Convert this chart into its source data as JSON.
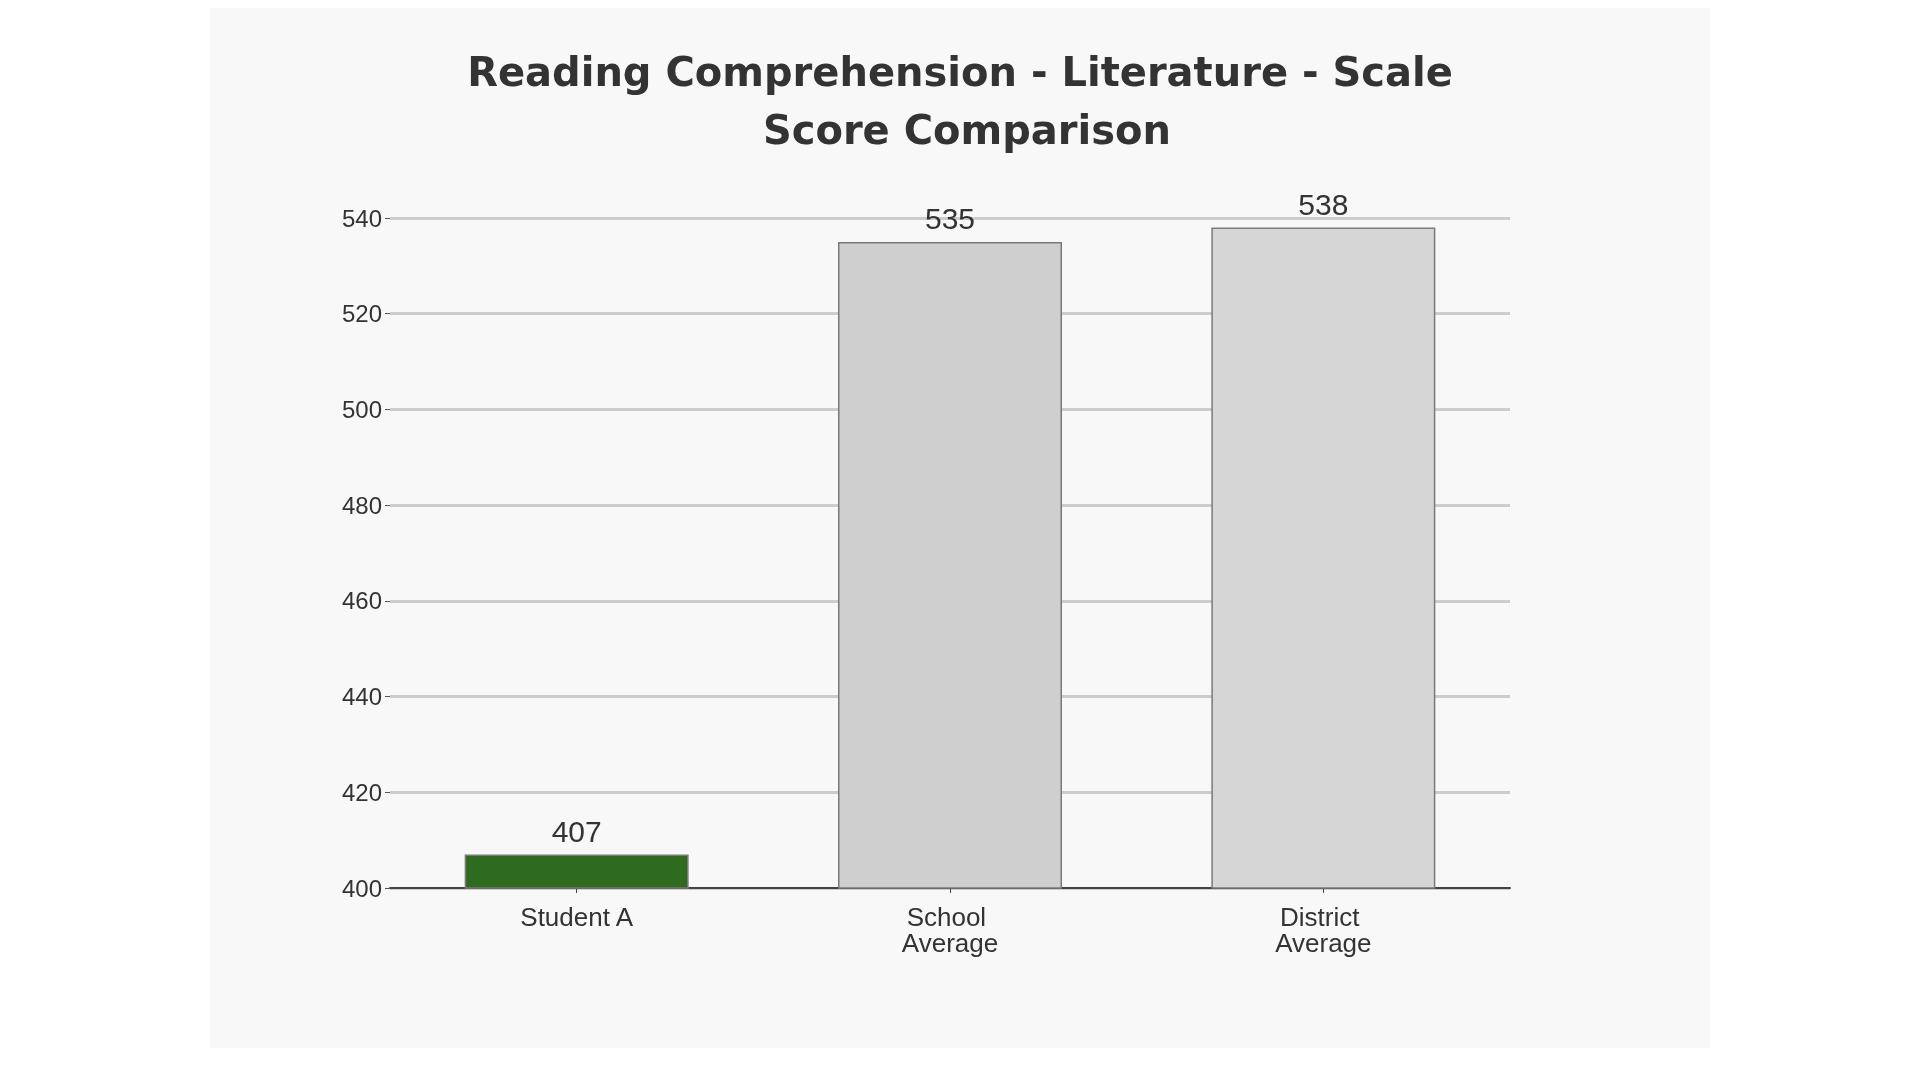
{
  "chart_data": {
    "type": "bar",
    "title": "Reading Comprehension - Literature - Scale Score Comparison",
    "categories": [
      "Student A",
      "School Average",
      "District Average"
    ],
    "values": [
      407,
      535,
      538
    ],
    "colors": [
      "#2e6b1f",
      "#cfcfcf",
      "#d6d6d6"
    ],
    "ylim": [
      400,
      540
    ],
    "yticks": [
      400,
      420,
      440,
      460,
      480,
      500,
      520,
      540
    ],
    "grid": "y",
    "data_labels": true
  }
}
